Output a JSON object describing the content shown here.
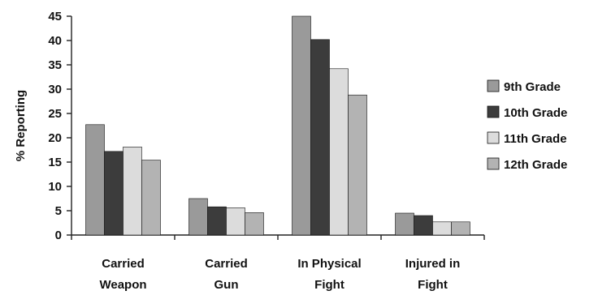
{
  "chart_data": {
    "type": "bar",
    "title": "",
    "xlabel": "",
    "ylabel": "% Reporting",
    "ylim": [
      0,
      45
    ],
    "yticks": [
      0,
      5,
      10,
      15,
      20,
      25,
      30,
      35,
      40,
      45
    ],
    "grid": false,
    "legend_position": "right",
    "categories": [
      [
        "Carried",
        "Weapon"
      ],
      [
        "Carried",
        "Gun"
      ],
      [
        "In Physical",
        "Fight"
      ],
      [
        "Injured in",
        "Fight"
      ]
    ],
    "series": [
      {
        "name": "9th Grade",
        "color": "#9a9a9a",
        "values": [
          22.7,
          7.5,
          45.0,
          4.5
        ]
      },
      {
        "name": "10th Grade",
        "color": "#3c3c3c",
        "values": [
          17.2,
          5.8,
          40.2,
          4.0
        ]
      },
      {
        "name": "11th Grade",
        "color": "#dcdcdc",
        "values": [
          18.1,
          5.6,
          34.2,
          2.7
        ]
      },
      {
        "name": "12th Grade",
        "color": "#b3b3b3",
        "values": [
          15.4,
          4.6,
          28.8,
          2.7
        ]
      }
    ]
  }
}
